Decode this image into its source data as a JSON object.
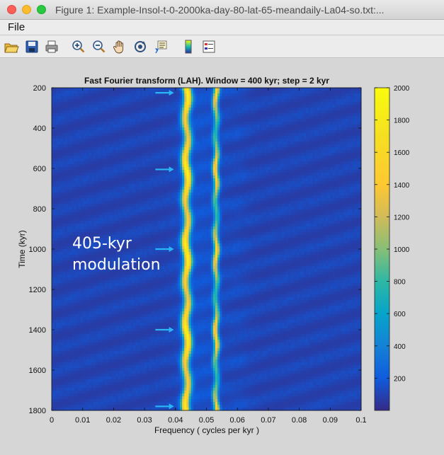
{
  "window": {
    "title": "Figure 1: Example-Insol-t-0-2000ka-day-80-lat-65-meandaily-La04-so.txt:..."
  },
  "menu": {
    "file_label": "File"
  },
  "toolbar": {
    "icons": [
      "open-icon",
      "save-icon",
      "print-icon",
      "zoom-in-icon",
      "zoom-out-icon",
      "pan-hand-icon",
      "rotate-icon",
      "data-cursor-icon",
      "colorbar-icon",
      "legend-icon"
    ]
  },
  "annotation": {
    "line1": "405-kyr",
    "line2": "modulation"
  },
  "colors": {
    "accent_arrow": "#29b6f6",
    "background": "#d6d6d6"
  },
  "chart_data": {
    "type": "heatmap",
    "title": "Fast Fourier transform (LAH). Window = 400 kyr; step = 2 kyr",
    "xlabel": "Frequency ( cycles per kyr )",
    "ylabel": "Time (kyr)",
    "xlim": [
      0,
      0.1
    ],
    "ylim": [
      200,
      1800
    ],
    "y_reversed": true,
    "xticks": [
      0,
      0.01,
      0.02,
      0.03,
      0.04,
      0.05,
      0.06,
      0.07,
      0.08,
      0.09,
      0.1
    ],
    "xtick_labels": [
      "0",
      "0.01",
      "0.02",
      "0.03",
      "0.04",
      "0.05",
      "0.06",
      "0.07",
      "0.08",
      "0.09",
      "0.1"
    ],
    "yticks": [
      200,
      400,
      600,
      800,
      1000,
      1200,
      1400,
      1600,
      1800
    ],
    "ytick_labels": [
      "200",
      "400",
      "600",
      "800",
      "1000",
      "1200",
      "1400",
      "1600",
      "1800"
    ],
    "colorbar": {
      "min": 0,
      "max": 2000,
      "ticks": [
        200,
        400,
        600,
        800,
        1000,
        1200,
        1400,
        1600,
        1800,
        2000
      ],
      "tick_labels": [
        "200",
        "400",
        "600",
        "800",
        "1000",
        "1200",
        "1400",
        "1600",
        "1800",
        "2000"
      ],
      "colormap": "parula"
    },
    "bands": [
      {
        "freq": 0.0436,
        "width": 0.0013,
        "peak": 2000,
        "mean": 1500,
        "modulation_period_kyr": 405
      },
      {
        "freq": 0.0531,
        "width": 0.0009,
        "peak": 1750,
        "mean": 1050,
        "modulation_period_kyr": 405
      }
    ],
    "arrow_times_kyr": [
      225,
      605,
      1000,
      1400,
      1780
    ]
  }
}
